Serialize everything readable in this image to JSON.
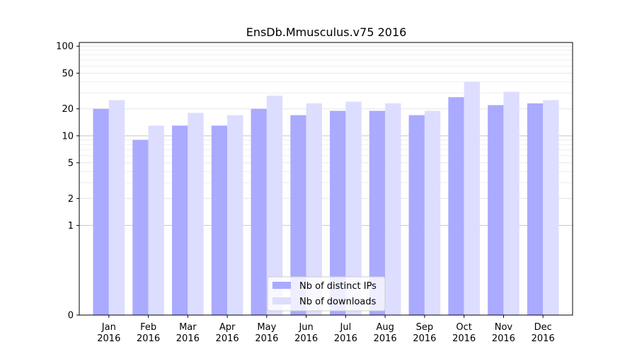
{
  "chart_data": {
    "type": "bar",
    "title": "EnsDb.Mmusculus.v75 2016",
    "xlabel": "",
    "ylabel": "",
    "y_scale": "symlog",
    "ylim": [
      0,
      110
    ],
    "y_ticks": [
      "0",
      "1",
      "2",
      "5",
      "10",
      "20",
      "50",
      "100"
    ],
    "grid": true,
    "legend_position": "bottom-center",
    "categories": [
      [
        "Jan",
        "2016"
      ],
      [
        "Feb",
        "2016"
      ],
      [
        "Mar",
        "2016"
      ],
      [
        "Apr",
        "2016"
      ],
      [
        "May",
        "2016"
      ],
      [
        "Jun",
        "2016"
      ],
      [
        "Jul",
        "2016"
      ],
      [
        "Aug",
        "2016"
      ],
      [
        "Sep",
        "2016"
      ],
      [
        "Oct",
        "2016"
      ],
      [
        "Nov",
        "2016"
      ],
      [
        "Dec",
        "2016"
      ]
    ],
    "series": [
      {
        "name": "Nb of distinct IPs",
        "color": "#aaaaff",
        "values": [
          20,
          9,
          13,
          13,
          20,
          17,
          19,
          19,
          17,
          27,
          22,
          23
        ]
      },
      {
        "name": "Nb of downloads",
        "color": "#ddddff",
        "values": [
          25,
          13,
          18,
          17,
          28,
          23,
          24,
          23,
          19,
          40,
          31,
          25
        ]
      }
    ]
  }
}
